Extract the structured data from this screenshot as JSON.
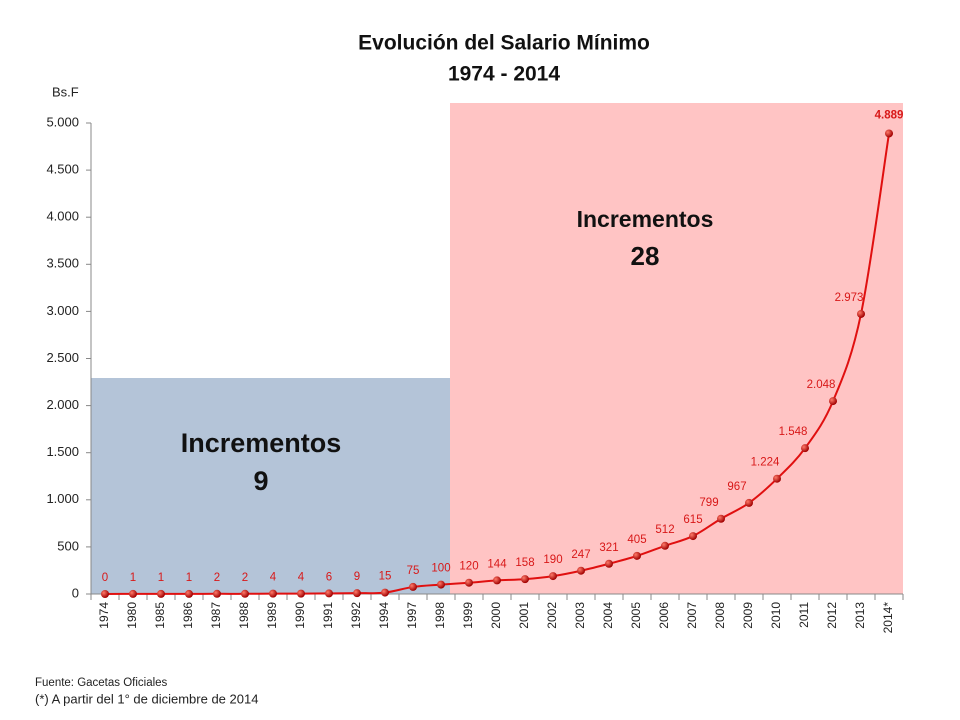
{
  "chart_data": {
    "type": "line",
    "title": "Evolución del Salario Mínimo",
    "subtitle": "1974 - 2014",
    "y_label": "Bs.F",
    "categories": [
      "1974",
      "1980",
      "1985",
      "1986",
      "1987",
      "1988",
      "1989",
      "1990",
      "1991",
      "1992",
      "1994",
      "1997",
      "1998",
      "1999",
      "2000",
      "2001",
      "2002",
      "2003",
      "2004",
      "2005",
      "2006",
      "2007",
      "2008",
      "2009",
      "2010",
      "2011",
      "2012",
      "2013",
      "2014*"
    ],
    "series": [
      {
        "name": "Salario Mínimo",
        "color": "#e01010",
        "values": [
          0,
          1,
          1,
          1,
          2,
          2,
          4,
          4,
          6,
          9,
          15,
          75,
          100,
          120,
          144,
          158,
          190,
          247,
          321,
          405,
          512,
          615,
          799,
          967,
          1224,
          1548,
          2048,
          2973,
          4889
        ],
        "value_labels": [
          "0",
          "1",
          "1",
          "1",
          "2",
          "2",
          "4",
          "4",
          "6",
          "9",
          "15",
          "75",
          "100",
          "120",
          "144",
          "158",
          "190",
          "247",
          "321",
          "405",
          "512",
          "615",
          "799",
          "967",
          "1.224",
          "1.548",
          "2.048",
          "2.973",
          "4.889"
        ]
      }
    ],
    "ylim": [
      0,
      5000
    ],
    "yticks": [
      0,
      500,
      {
        "value": 1000,
        "label": "1.000"
      },
      {
        "value": 1500,
        "label": "1.500"
      },
      {
        "value": 2000,
        "label": "2.000"
      },
      {
        "value": 2500,
        "label": "2.500"
      },
      {
        "value": 3000,
        "label": "3.000"
      },
      {
        "value": 3500,
        "label": "3.500"
      },
      {
        "value": 4000,
        "label": "4.000"
      },
      {
        "value": 4500,
        "label": "4.500"
      },
      {
        "value": 5000,
        "label": "5.000"
      }
    ],
    "annotations": [
      {
        "title": "Incrementos",
        "count": "9"
      },
      {
        "title": "Incrementos",
        "count": "28"
      }
    ],
    "source": "Fuente:  Gacetas Oficiales",
    "note": "(*) A partir del 1° de diciembre de 2014"
  }
}
